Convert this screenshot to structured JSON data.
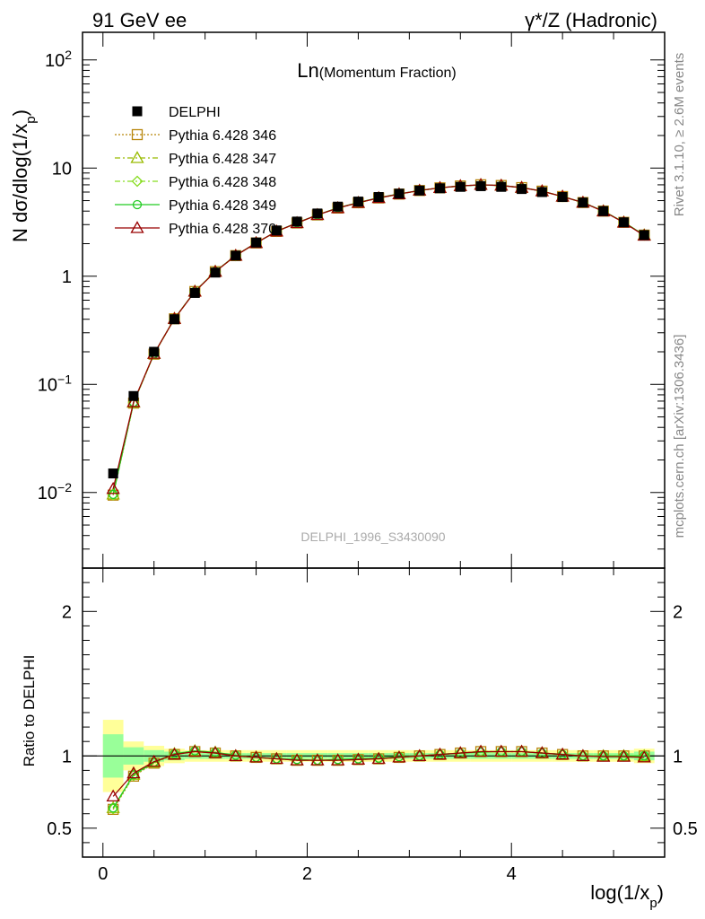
{
  "header": {
    "left": "91 GeV ee",
    "right": "γ*/Z (Hadronic)"
  },
  "side_labels": {
    "rivet": "Rivet 3.1.10, ≥ 2.6M events",
    "mcplots": "mcplots.cern.ch [arXiv:1306.3436]"
  },
  "plot": {
    "title_main": "Ln",
    "title_sub": "(Momentum Fraction)",
    "watermark": "DELPHI_1996_S3430090"
  },
  "chart_data": {
    "type": "scatter",
    "xlabel": "log(1/x_p)",
    "ylabel": "N dσ/dlog(1/x_p)",
    "ratio_ylabel": "Ratio to DELPHI",
    "xlim": [
      -0.2,
      5.5
    ],
    "ylim": [
      0.002,
      180
    ],
    "yscale": "log",
    "ratio_ylim": [
      0.3,
      2.3
    ],
    "x_ticks": [
      "0",
      "2",
      "4"
    ],
    "y_ticks": [
      "10^-2",
      "10^-1",
      "1",
      "10",
      "10^2"
    ],
    "ratio_ticks": [
      "0.5",
      "1",
      "2"
    ],
    "legend_placement": "top-left",
    "x": [
      0.1,
      0.3,
      0.5,
      0.7,
      0.9,
      1.1,
      1.3,
      1.5,
      1.7,
      1.9,
      2.1,
      2.3,
      2.5,
      2.7,
      2.9,
      3.1,
      3.3,
      3.5,
      3.7,
      3.9,
      4.1,
      4.3,
      4.5,
      4.7,
      4.9,
      5.1,
      5.3
    ],
    "data": {
      "name": "DELPHI",
      "color": "#000000",
      "values": [
        0.015,
        0.078,
        0.2,
        0.4,
        0.7,
        1.08,
        1.55,
        2.05,
        2.65,
        3.2,
        3.8,
        4.4,
        4.9,
        5.4,
        5.8,
        6.2,
        6.5,
        6.7,
        6.8,
        6.7,
        6.4,
        6.0,
        5.4,
        4.8,
        4.0,
        3.15,
        2.4
      ],
      "band_inner": [
        0.15,
        0.06,
        0.04,
        0.03,
        0.02,
        0.02,
        0.02,
        0.02,
        0.02,
        0.02,
        0.02,
        0.02,
        0.02,
        0.02,
        0.02,
        0.02,
        0.02,
        0.02,
        0.02,
        0.02,
        0.02,
        0.02,
        0.02,
        0.02,
        0.02,
        0.02,
        0.03
      ],
      "band_outer": [
        0.25,
        0.1,
        0.07,
        0.05,
        0.04,
        0.04,
        0.04,
        0.04,
        0.04,
        0.04,
        0.04,
        0.04,
        0.04,
        0.04,
        0.04,
        0.04,
        0.04,
        0.04,
        0.04,
        0.04,
        0.04,
        0.04,
        0.04,
        0.04,
        0.04,
        0.04,
        0.05
      ]
    },
    "series": [
      {
        "name": "Pythia 6.428 346",
        "color": "#b8860b",
        "marker": "square-open",
        "line": "dotted",
        "ratio": [
          0.63,
          0.86,
          0.95,
          1.01,
          1.03,
          1.02,
          1.0,
          0.99,
          0.98,
          0.97,
          0.97,
          0.97,
          0.975,
          0.98,
          0.99,
          1.0,
          1.01,
          1.02,
          1.03,
          1.03,
          1.03,
          1.02,
          1.01,
          1.0,
          1.0,
          1.0,
          1.0
        ]
      },
      {
        "name": "Pythia 6.428 347",
        "color": "#99bb00",
        "marker": "triangle-open",
        "line": "dashdot",
        "ratio": [
          0.64,
          0.87,
          0.955,
          1.015,
          1.035,
          1.025,
          1.0,
          0.99,
          0.98,
          0.97,
          0.97,
          0.97,
          0.975,
          0.98,
          0.99,
          1.0,
          1.01,
          1.02,
          1.03,
          1.03,
          1.03,
          1.02,
          1.01,
          1.0,
          1.0,
          1.0,
          1.0
        ]
      },
      {
        "name": "Pythia 6.428 348",
        "color": "#88dd22",
        "marker": "diamond-open",
        "line": "dashdot",
        "ratio": [
          0.635,
          0.865,
          0.955,
          1.01,
          1.03,
          1.02,
          1.0,
          0.99,
          0.98,
          0.97,
          0.97,
          0.97,
          0.975,
          0.98,
          0.99,
          1.0,
          1.01,
          1.02,
          1.03,
          1.03,
          1.03,
          1.02,
          1.01,
          1.0,
          1.0,
          1.0,
          1.0
        ]
      },
      {
        "name": "Pythia 6.428 349",
        "color": "#22cc22",
        "marker": "circle-open",
        "line": "solid",
        "ratio": [
          0.64,
          0.87,
          0.955,
          1.015,
          1.035,
          1.025,
          1.005,
          0.99,
          0.98,
          0.975,
          0.97,
          0.975,
          0.98,
          0.985,
          0.995,
          1.0,
          1.01,
          1.02,
          1.025,
          1.03,
          1.03,
          1.02,
          1.01,
          1.0,
          1.0,
          1.0,
          1.0
        ]
      },
      {
        "name": "Pythia 6.428 370",
        "color": "#990000",
        "marker": "triangle-open",
        "line": "solid",
        "ratio": [
          0.72,
          0.88,
          0.96,
          1.01,
          1.03,
          1.02,
          1.0,
          0.99,
          0.98,
          0.97,
          0.97,
          0.97,
          0.975,
          0.98,
          0.99,
          1.0,
          1.01,
          1.02,
          1.03,
          1.03,
          1.03,
          1.02,
          1.01,
          1.0,
          0.995,
          0.995,
          0.99
        ]
      }
    ]
  }
}
